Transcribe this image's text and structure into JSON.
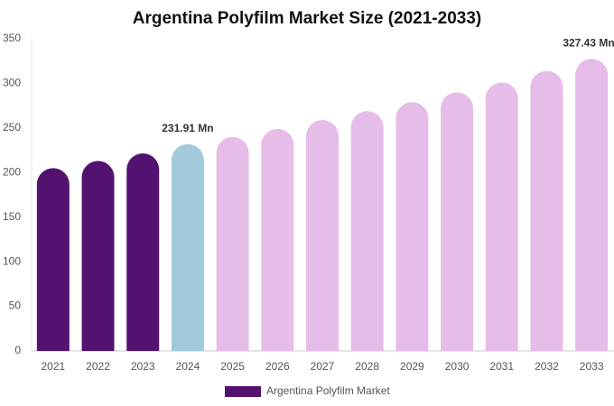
{
  "chart_data": {
    "type": "bar",
    "title": "Argentina Polyfilm Market Size (2021-2033)",
    "categories": [
      "2021",
      "2022",
      "2023",
      "2024",
      "2025",
      "2026",
      "2027",
      "2028",
      "2029",
      "2030",
      "2031",
      "2032",
      "2033"
    ],
    "series": [
      {
        "name": "Argentina Polyfilm Market",
        "color": "#541270",
        "values": [
          205,
          213,
          221.5,
          231.91,
          240,
          249,
          259,
          269,
          279,
          290,
          301,
          314,
          327.43
        ],
        "colors": [
          "#541270",
          "#541270",
          "#541270",
          "#a3c9dc",
          "#e6bce8",
          "#e6bce8",
          "#e6bce8",
          "#e6bce8",
          "#e6bce8",
          "#e6bce8",
          "#e6bce8",
          "#e6bce8",
          "#e6bce8"
        ],
        "value_labels": [
          null,
          null,
          null,
          "231.91 Mn",
          null,
          null,
          null,
          null,
          null,
          null,
          null,
          null,
          "327.43 Mn"
        ]
      }
    ],
    "ylim": [
      0,
      350
    ],
    "yticks": [
      0,
      50,
      100,
      150,
      200,
      250,
      300,
      350
    ],
    "grid": false
  }
}
